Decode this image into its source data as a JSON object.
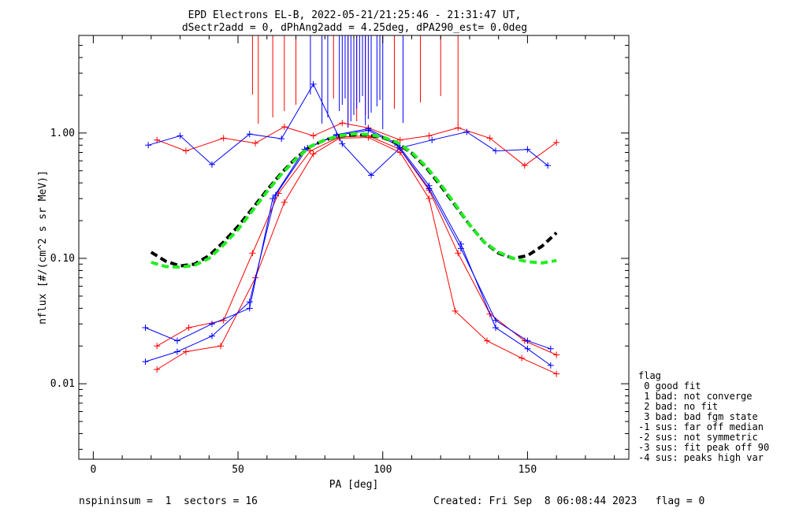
{
  "chart_data": {
    "type": "line",
    "title_line1": "EPD Electrons EL-B, 2022-05-21/21:25:46 - 21:31:47 UT,",
    "title_line2": "dSectr2add = 0, dPhAng2add = 4.25deg, dPA290_est=   0.0deg",
    "xlabel": "PA [deg]",
    "ylabel": "nflux [#/(cm^2 s sr MeV)]",
    "xlim": [
      -5,
      185
    ],
    "ylim": [
      0.0025,
      6
    ],
    "yscale": "log",
    "x_ticks": [
      "0",
      "50",
      "100",
      "150"
    ],
    "y_ticks": [
      "0.01",
      "0.10",
      "1.00"
    ],
    "colors": {
      "red": "#ff0000",
      "blue": "#0000ff",
      "green": "#22ee22",
      "black": "#000000"
    },
    "series": [
      {
        "color": "red",
        "style": "thin lines with + markers",
        "points": [
          [
            22,
            0.02
          ],
          [
            33,
            0.028
          ],
          [
            45,
            0.032
          ],
          [
            55,
            0.11
          ],
          [
            64,
            0.33
          ],
          [
            75,
            0.72
          ],
          [
            85,
            0.93
          ],
          [
            95,
            0.95
          ],
          [
            106,
            0.74
          ],
          [
            116,
            0.35
          ],
          [
            126,
            0.11
          ],
          [
            137,
            0.036
          ],
          [
            149,
            0.022
          ],
          [
            160,
            0.017
          ]
        ]
      },
      {
        "color": "red",
        "style": "thin lines with + markers",
        "points": [
          [
            22,
            0.013
          ],
          [
            32,
            0.018
          ],
          [
            44,
            0.02
          ],
          [
            56,
            0.07
          ],
          [
            66,
            0.28
          ],
          [
            76,
            0.68
          ],
          [
            85,
            0.91
          ],
          [
            95,
            0.92
          ],
          [
            106,
            0.7
          ],
          [
            116,
            0.3
          ],
          [
            125,
            0.038
          ],
          [
            136,
            0.022
          ],
          [
            148,
            0.016
          ],
          [
            160,
            0.012
          ]
        ]
      },
      {
        "color": "red",
        "style": "thin lines with + markers",
        "points": [
          [
            22,
            0.88
          ],
          [
            32,
            0.72
          ],
          [
            45,
            0.91
          ],
          [
            56,
            0.83
          ],
          [
            66,
            1.12
          ],
          [
            76,
            0.95
          ],
          [
            86,
            1.2
          ],
          [
            95,
            1.1
          ],
          [
            106,
            0.88
          ],
          [
            116,
            0.95
          ],
          [
            126,
            1.1
          ],
          [
            137,
            0.91
          ],
          [
            149,
            0.55
          ],
          [
            160,
            0.84
          ]
        ]
      },
      {
        "color": "blue",
        "style": "thin lines with + markers",
        "points": [
          [
            18,
            0.028
          ],
          [
            29,
            0.022
          ],
          [
            41,
            0.03
          ],
          [
            54,
            0.04
          ],
          [
            62,
            0.3
          ],
          [
            73,
            0.74
          ],
          [
            84,
            0.96
          ],
          [
            95,
            1.05
          ],
          [
            105,
            0.8
          ],
          [
            116,
            0.36
          ],
          [
            127,
            0.12
          ],
          [
            139,
            0.032
          ],
          [
            150,
            0.022
          ],
          [
            158,
            0.019
          ]
        ]
      },
      {
        "color": "blue",
        "style": "thin lines with + markers",
        "points": [
          [
            18,
            0.015
          ],
          [
            29,
            0.018
          ],
          [
            41,
            0.024
          ],
          [
            54,
            0.045
          ],
          [
            63,
            0.32
          ],
          [
            74,
            0.76
          ],
          [
            84,
            0.97
          ],
          [
            95,
            1.08
          ],
          [
            105,
            0.82
          ],
          [
            116,
            0.38
          ],
          [
            127,
            0.13
          ],
          [
            139,
            0.028
          ],
          [
            150,
            0.019
          ],
          [
            158,
            0.014
          ]
        ]
      },
      {
        "color": "blue",
        "style": "thin lines with + markers",
        "points": [
          [
            19,
            0.8
          ],
          [
            30,
            0.95
          ],
          [
            41,
            0.56
          ],
          [
            54,
            0.98
          ],
          [
            65,
            0.9
          ],
          [
            76,
            2.45
          ],
          [
            86,
            0.82
          ],
          [
            96,
            0.46
          ],
          [
            106,
            0.76
          ],
          [
            117,
            0.88
          ],
          [
            129,
            1.02
          ],
          [
            139,
            0.72
          ],
          [
            150,
            0.74
          ],
          [
            157,
            0.55
          ]
        ]
      }
    ],
    "fit_curves": [
      {
        "color": "black",
        "style": "dashed",
        "points": [
          [
            20,
            0.112
          ],
          [
            25,
            0.095
          ],
          [
            30,
            0.087
          ],
          [
            35,
            0.09
          ],
          [
            40,
            0.105
          ],
          [
            45,
            0.135
          ],
          [
            50,
            0.18
          ],
          [
            55,
            0.25
          ],
          [
            60,
            0.35
          ],
          [
            65,
            0.48
          ],
          [
            70,
            0.63
          ],
          [
            75,
            0.78
          ],
          [
            80,
            0.88
          ],
          [
            85,
            0.945
          ],
          [
            90,
            0.965
          ],
          [
            95,
            0.96
          ],
          [
            100,
            0.92
          ],
          [
            105,
            0.83
          ],
          [
            110,
            0.69
          ],
          [
            115,
            0.53
          ],
          [
            120,
            0.38
          ],
          [
            125,
            0.265
          ],
          [
            130,
            0.185
          ],
          [
            135,
            0.135
          ],
          [
            140,
            0.11
          ],
          [
            145,
            0.1
          ],
          [
            150,
            0.105
          ],
          [
            155,
            0.125
          ],
          [
            160,
            0.16
          ]
        ]
      },
      {
        "color": "green",
        "style": "dashed",
        "points": [
          [
            20,
            0.093
          ],
          [
            25,
            0.086
          ],
          [
            30,
            0.085
          ],
          [
            35,
            0.088
          ],
          [
            40,
            0.1
          ],
          [
            45,
            0.128
          ],
          [
            50,
            0.17
          ],
          [
            55,
            0.24
          ],
          [
            60,
            0.34
          ],
          [
            65,
            0.47
          ],
          [
            70,
            0.62
          ],
          [
            75,
            0.78
          ],
          [
            80,
            0.88
          ],
          [
            85,
            0.95
          ],
          [
            90,
            0.985
          ],
          [
            95,
            0.975
          ],
          [
            100,
            0.93
          ],
          [
            105,
            0.84
          ],
          [
            110,
            0.7
          ],
          [
            115,
            0.54
          ],
          [
            120,
            0.39
          ],
          [
            125,
            0.27
          ],
          [
            130,
            0.185
          ],
          [
            135,
            0.135
          ],
          [
            140,
            0.112
          ],
          [
            145,
            0.1
          ],
          [
            150,
            0.094
          ],
          [
            155,
            0.092
          ],
          [
            160,
            0.096
          ]
        ]
      }
    ],
    "spikes": [
      {
        "color": "red",
        "x": [
          55,
          57,
          62,
          66,
          70,
          83,
          88,
          91,
          94,
          104,
          113,
          120,
          126
        ]
      },
      {
        "color": "blue",
        "x": [
          75,
          79,
          81,
          85,
          86,
          87,
          88,
          89,
          90,
          91,
          92,
          93,
          94,
          95,
          96,
          98,
          99,
          100,
          107
        ]
      }
    ]
  },
  "legend": {
    "title": "flag",
    "items": [
      " 0 good fit",
      " 1 bad: not converge",
      " 2 bad: no fit",
      " 3 bad: bad fgm state",
      "-1 sus: far off median",
      "-2 sus: not symmetric",
      "-3 sus: fit peak off 90",
      "-4 sus: peaks high var"
    ]
  },
  "footer": {
    "left": "nspininsum =  1  sectors = 16",
    "right": "Created: Fri Sep  8 06:08:44 2023   flag = 0"
  }
}
